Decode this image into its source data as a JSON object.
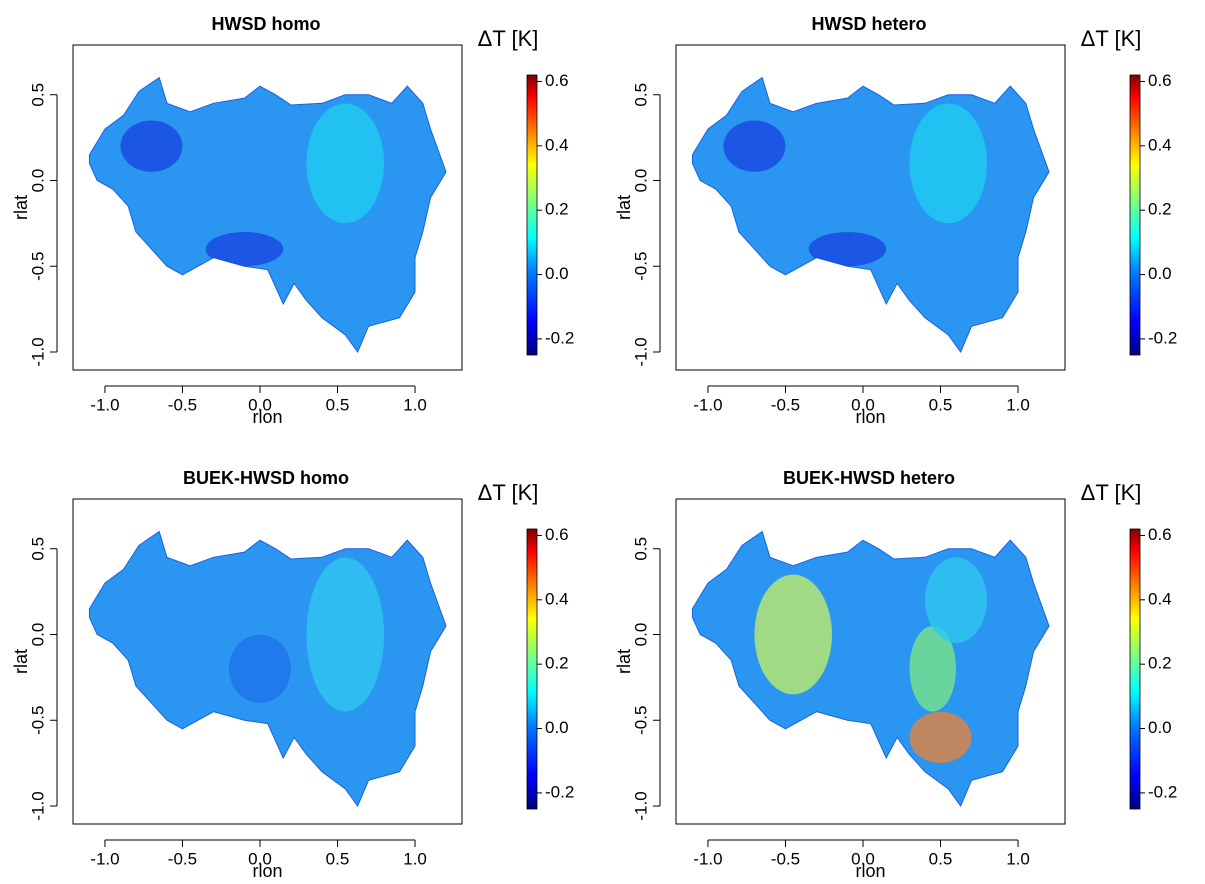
{
  "chart_data": [
    {
      "type": "map",
      "title": "HWSD homo",
      "xlabel": "rlon",
      "ylabel": "rlat",
      "xlim": [
        -1.206,
        1.303
      ],
      "ylim": [
        -1.105,
        0.79
      ],
      "xticks": [
        {
          "value": -1,
          "label": "-1.0"
        },
        -0.5,
        {
          "value": 0,
          "label": "0.0"
        },
        0.5,
        {
          "value": 1,
          "label": "1.0"
        }
      ],
      "yticks": [
        {
          "value": -1,
          "label": "-1.0"
        },
        -0.5,
        {
          "value": 0,
          "label": "0.0"
        },
        0.5
      ],
      "colorbar": {
        "label": "ΔT [K]",
        "lim": [
          -0.25,
          0.62
        ],
        "ticks": [
          -0.2,
          {
            "value": 0,
            "label": "0.0"
          },
          0.2,
          0.4,
          0.6
        ]
      }
    },
    {
      "type": "map",
      "title": "HWSD hetero",
      "xlabel": "rlon",
      "ylabel": "rlat",
      "xlim": [
        -1.206,
        1.303
      ],
      "ylim": [
        -1.105,
        0.79
      ],
      "xticks": [
        {
          "value": -1,
          "label": "-1.0"
        },
        -0.5,
        {
          "value": 0,
          "label": "0.0"
        },
        0.5,
        {
          "value": 1,
          "label": "1.0"
        }
      ],
      "yticks": [
        {
          "value": -1,
          "label": "-1.0"
        },
        -0.5,
        {
          "value": 0,
          "label": "0.0"
        },
        0.5
      ],
      "colorbar": {
        "label": "ΔT [K]",
        "lim": [
          -0.25,
          0.62
        ],
        "ticks": [
          -0.2,
          {
            "value": 0,
            "label": "0.0"
          },
          0.2,
          0.4,
          0.6
        ]
      }
    },
    {
      "type": "map",
      "title": "BUEK-HWSD homo",
      "xlabel": "rlon",
      "ylabel": "rlat",
      "xlim": [
        -1.206,
        1.303
      ],
      "ylim": [
        -1.105,
        0.79
      ],
      "xticks": [
        {
          "value": -1,
          "label": "-1.0"
        },
        -0.5,
        {
          "value": 0,
          "label": "0.0"
        },
        0.5,
        {
          "value": 1,
          "label": "1.0"
        }
      ],
      "yticks": [
        {
          "value": -1,
          "label": "-1.0"
        },
        -0.5,
        {
          "value": 0,
          "label": "0.0"
        },
        0.5
      ],
      "colorbar": {
        "label": "ΔT [K]",
        "lim": [
          -0.25,
          0.62
        ],
        "ticks": [
          -0.2,
          {
            "value": 0,
            "label": "0.0"
          },
          0.2,
          0.4,
          0.6
        ]
      }
    },
    {
      "type": "map",
      "title": "BUEK-HWSD hetero",
      "xlabel": "rlon",
      "ylabel": "rlat",
      "xlim": [
        -1.206,
        1.303
      ],
      "ylim": [
        -1.105,
        0.79
      ],
      "xticks": [
        {
          "value": -1,
          "label": "-1.0"
        },
        -0.5,
        {
          "value": 0,
          "label": "0.0"
        },
        0.5,
        {
          "value": 1,
          "label": "1.0"
        }
      ],
      "yticks": [
        {
          "value": -1,
          "label": "-1.0"
        },
        -0.5,
        {
          "value": 0,
          "label": "0.0"
        },
        0.5
      ],
      "colorbar": {
        "label": "ΔT [K]",
        "lim": [
          -0.25,
          0.62
        ],
        "ticks": [
          -0.2,
          {
            "value": 0,
            "label": "0.0"
          },
          0.2,
          0.4,
          0.6
        ]
      }
    }
  ]
}
